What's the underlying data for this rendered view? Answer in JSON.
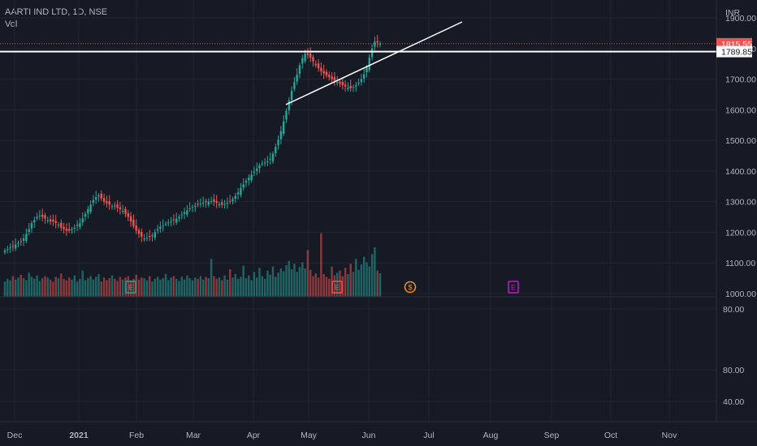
{
  "header": {
    "title": "AARTI IND LTD, 1D, NSE",
    "volume_label": "Vol",
    "currency": "INR"
  },
  "price_tags": {
    "last": "1815.55",
    "level": "1789.85"
  },
  "colors": {
    "up": "#26a69a",
    "down": "#ef5350",
    "bg": "#161a25",
    "grid": "#222631",
    "text": "#b2b5be",
    "dividend": "#f7931a",
    "earnings_future": "#c218c9"
  },
  "event_markers": [
    {
      "label": "E",
      "month": "Feb",
      "kind": "earnings"
    },
    {
      "label": "E",
      "month": "May",
      "kind": "earnings"
    },
    {
      "label": "$",
      "month": "Jun",
      "kind": "dividend"
    },
    {
      "label": "E",
      "month": "Aug",
      "kind": "earnings"
    }
  ],
  "chart_data": {
    "type": "candlestick",
    "title": "AARTI IND LTD, 1D, NSE",
    "x_ticks": [
      "Dec",
      "2021",
      "Feb",
      "Mar",
      "Apr",
      "May",
      "Jun",
      "Jul",
      "Aug",
      "Sep",
      "Oct",
      "Nov"
    ],
    "y_ticks": [
      "1900.00",
      "1800.00",
      "1700.00",
      "1600.00",
      "1500.00",
      "1400.00",
      "1300.00",
      "1200.00",
      "1100.00",
      "1000.00"
    ],
    "ylim": [
      990,
      1910
    ],
    "indicator_ticks": [
      "80.00",
      "80.00",
      "40.00"
    ],
    "horizontal_level": 1789.85,
    "last_price": 1815.55,
    "trendlines": [
      {
        "name": "lower-trendline",
        "from": [
          "2021-04-20",
          1620
        ],
        "to": [
          "2021-06-20",
          1890
        ]
      }
    ],
    "closes": [
      1140,
      1145,
      1150,
      1155,
      1160,
      1165,
      1170,
      1180,
      1195,
      1210,
      1230,
      1240,
      1250,
      1255,
      1250,
      1245,
      1240,
      1235,
      1235,
      1230,
      1225,
      1215,
      1210,
      1205,
      1205,
      1210,
      1215,
      1225,
      1230,
      1245,
      1260,
      1275,
      1290,
      1305,
      1315,
      1320,
      1310,
      1300,
      1295,
      1290,
      1285,
      1285,
      1280,
      1275,
      1270,
      1260,
      1250,
      1235,
      1220,
      1205,
      1195,
      1185,
      1180,
      1182,
      1185,
      1190,
      1200,
      1210,
      1218,
      1222,
      1228,
      1232,
      1236,
      1240,
      1244,
      1250,
      1258,
      1266,
      1272,
      1278,
      1282,
      1286,
      1290,
      1294,
      1296,
      1298,
      1300,
      1302,
      1300,
      1296,
      1292,
      1290,
      1292,
      1296,
      1300,
      1308,
      1318,
      1330,
      1344,
      1356,
      1368,
      1378,
      1388,
      1398,
      1408,
      1418,
      1424,
      1428,
      1432,
      1440,
      1456,
      1478,
      1502,
      1530,
      1562,
      1596,
      1630,
      1662,
      1690,
      1715,
      1745,
      1768,
      1782,
      1778,
      1770,
      1758,
      1745,
      1735,
      1725,
      1718,
      1712,
      1706,
      1700,
      1695,
      1690,
      1685,
      1680,
      1676,
      1672,
      1670,
      1674,
      1680,
      1688,
      1700,
      1716,
      1738,
      1770,
      1800,
      1822,
      1820,
      1816
    ],
    "volumes": [
      22,
      26,
      24,
      30,
      25,
      28,
      32,
      27,
      24,
      35,
      29,
      26,
      31,
      23,
      27,
      30,
      28,
      25,
      22,
      29,
      27,
      34,
      26,
      24,
      28,
      25,
      31,
      22,
      26,
      38,
      24,
      27,
      30,
      25,
      29,
      33,
      22,
      28,
      24,
      27,
      31,
      26,
      23,
      29,
      25,
      28,
      30,
      24,
      26,
      32,
      25,
      28,
      27,
      24,
      30,
      22,
      26,
      29,
      25,
      27,
      33,
      24,
      28,
      30,
      26,
      23,
      29,
      25,
      31,
      27,
      24,
      28,
      26,
      30,
      25,
      29,
      27,
      55,
      30,
      26,
      28,
      24,
      31,
      25,
      40,
      28,
      33,
      26,
      29,
      45,
      27,
      31,
      24,
      36,
      28,
      42,
      30,
      26,
      38,
      32,
      44,
      29,
      35,
      41,
      37,
      46,
      52,
      40,
      48,
      36,
      43,
      50,
      41,
      68,
      39,
      30,
      34,
      28,
      92,
      33,
      29,
      26,
      44,
      31,
      35,
      38,
      30,
      42,
      33,
      48,
      36,
      55,
      39,
      47,
      58,
      50,
      44,
      62,
      72,
      38,
      34
    ]
  }
}
